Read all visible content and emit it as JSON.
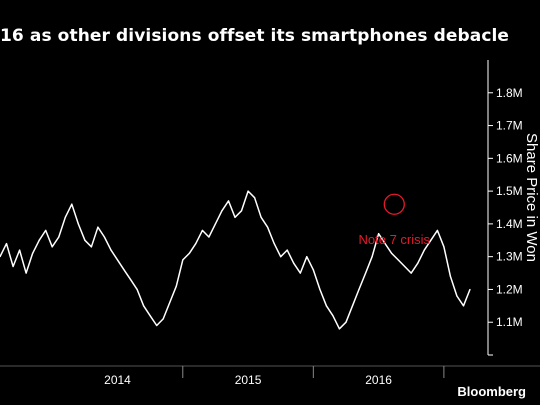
{
  "header": {
    "title": "16 as other divisions offset its smartphones debacle"
  },
  "footer": {
    "brand": "Bloomberg"
  },
  "chart_data": {
    "type": "line",
    "title": "16 as other divisions offset its smartphones debacle",
    "ylabel": "Share Price in Won",
    "xlabel": "",
    "ylim": [
      1000000,
      1900000
    ],
    "x_range": [
      2013.1,
      2016.7
    ],
    "y_ticks": [
      {
        "value": 1100000,
        "label": "1.1M"
      },
      {
        "value": 1200000,
        "label": "1.2M"
      },
      {
        "value": 1300000,
        "label": "1.3M"
      },
      {
        "value": 1400000,
        "label": "1.4M"
      },
      {
        "value": 1500000,
        "label": "1.5M"
      },
      {
        "value": 1600000,
        "label": "1.6M"
      },
      {
        "value": 1700000,
        "label": "1.7M"
      },
      {
        "value": 1800000,
        "label": "1.8M"
      }
    ],
    "x_ticks": [
      {
        "label": "2014",
        "value": 2014.0
      },
      {
        "label": "2015",
        "value": 2015.0
      },
      {
        "label": "2016",
        "value": 2016.0
      }
    ],
    "x_separators": [
      2014.5,
      2015.5,
      2016.5
    ],
    "grid": false,
    "colors": {
      "line": "#ffffff",
      "annotation": "#e8192c",
      "background": "#000000"
    },
    "series": [
      {
        "name": "",
        "x": [
          2013.1,
          2013.15,
          2013.2,
          2013.25,
          2013.3,
          2013.35,
          2013.4,
          2013.45,
          2013.5,
          2013.55,
          2013.6,
          2013.65,
          2013.7,
          2013.75,
          2013.8,
          2013.85,
          2013.9,
          2013.95,
          2014.0,
          2014.05,
          2014.1,
          2014.15,
          2014.2,
          2014.25,
          2014.3,
          2014.35,
          2014.4,
          2014.45,
          2014.5,
          2014.55,
          2014.6,
          2014.65,
          2014.7,
          2014.75,
          2014.8,
          2014.85,
          2014.9,
          2014.95,
          2015.0,
          2015.05,
          2015.1,
          2015.15,
          2015.2,
          2015.25,
          2015.3,
          2015.35,
          2015.4,
          2015.45,
          2015.5,
          2015.55,
          2015.6,
          2015.65,
          2015.7,
          2015.75,
          2015.8,
          2015.85,
          2015.9,
          2015.95,
          2016.0,
          2016.05,
          2016.1,
          2016.15,
          2016.2,
          2016.25,
          2016.3,
          2016.35,
          2016.4,
          2016.45,
          2016.5,
          2016.55,
          2016.6,
          2016.65,
          2016.7
        ],
        "values": [
          1300000,
          1340000,
          1270000,
          1320000,
          1250000,
          1310000,
          1350000,
          1380000,
          1330000,
          1360000,
          1420000,
          1460000,
          1400000,
          1350000,
          1330000,
          1390000,
          1360000,
          1320000,
          1290000,
          1260000,
          1230000,
          1200000,
          1150000,
          1120000,
          1090000,
          1110000,
          1160000,
          1210000,
          1290000,
          1310000,
          1340000,
          1380000,
          1360000,
          1400000,
          1440000,
          1470000,
          1420000,
          1440000,
          1500000,
          1480000,
          1420000,
          1390000,
          1340000,
          1300000,
          1320000,
          1280000,
          1250000,
          1300000,
          1260000,
          1200000,
          1150000,
          1120000,
          1080000,
          1100000,
          1150000,
          1200000,
          1250000,
          1300000,
          1370000,
          1340000,
          1310000,
          1290000,
          1270000,
          1250000,
          1280000,
          1320000,
          1350000,
          1380000,
          1330000,
          1240000,
          1180000,
          1150000,
          1200000
        ]
      }
    ],
    "annotations": [
      {
        "text": "Note 7 crisis",
        "x": 2016.12,
        "y": 1460000
      }
    ]
  }
}
